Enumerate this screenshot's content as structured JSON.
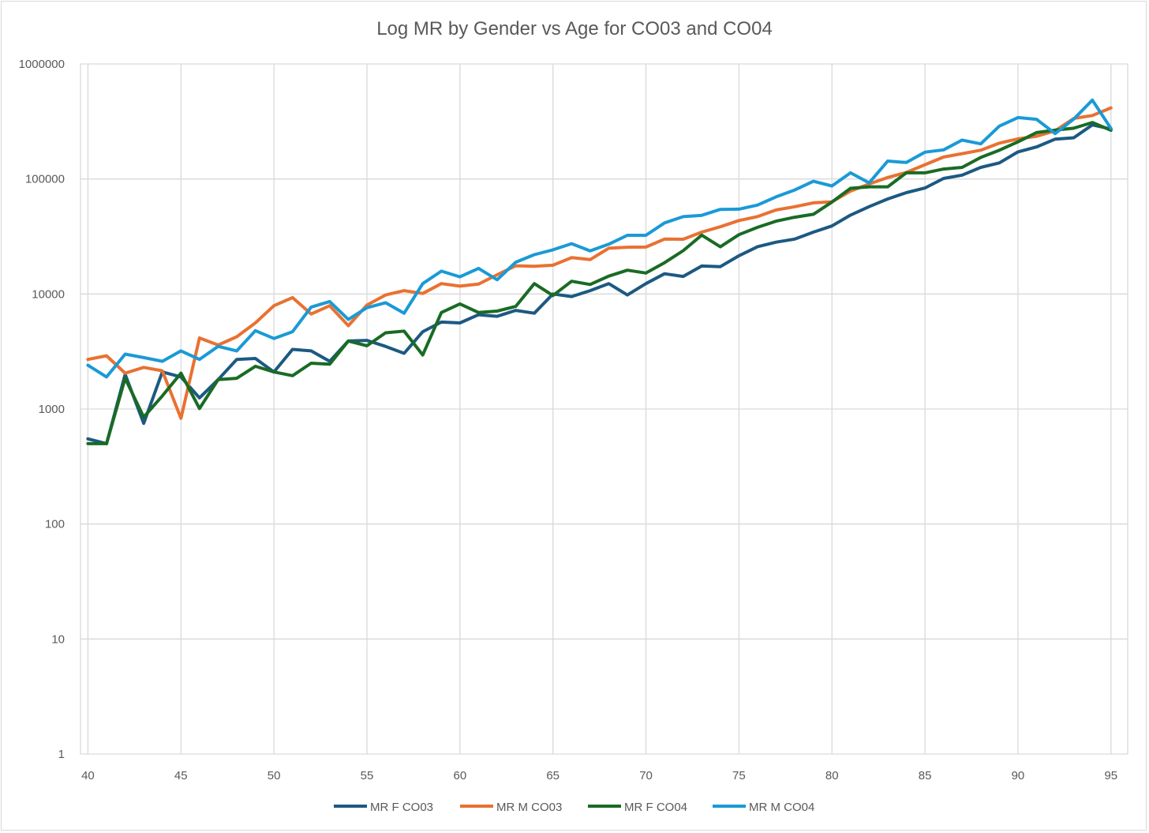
{
  "chart_data": {
    "type": "line",
    "title": "Log MR by Gender vs Age for CO03 and CO04",
    "xlabel": "",
    "ylabel": "",
    "yscale": "log",
    "xlim": [
      39.6,
      95.9
    ],
    "ylim": [
      1,
      1000000
    ],
    "grid": true,
    "legend_position": "bottom",
    "x_ticks": [
      "40",
      "45",
      "50",
      "55",
      "60",
      "65",
      "70",
      "75",
      "80",
      "85",
      "90",
      "95"
    ],
    "y_ticks": [
      "1",
      "10",
      "100",
      "1000",
      "10000",
      "100000",
      "1000000"
    ],
    "x": [
      40,
      41,
      42,
      43,
      44,
      45,
      46,
      47,
      48,
      49,
      50,
      51,
      52,
      53,
      54,
      55,
      56,
      57,
      58,
      59,
      60,
      61,
      62,
      63,
      64,
      65,
      66,
      67,
      68,
      69,
      70,
      71,
      72,
      73,
      74,
      75,
      76,
      77,
      78,
      79,
      80,
      81,
      82,
      83,
      84,
      85,
      86,
      87,
      88,
      89,
      90,
      91,
      92,
      93,
      94,
      95
    ],
    "series": [
      {
        "name": "MR F CO03",
        "color": "#1c5982",
        "values": [
          550,
          500,
          2000,
          750,
          2100,
          1900,
          1250,
          1800,
          2700,
          2750,
          2100,
          3300,
          3200,
          2600,
          3900,
          3950,
          3500,
          3050,
          4700,
          5700,
          5600,
          6600,
          6400,
          7200,
          6800,
          10000,
          9500,
          10700,
          12300,
          9800,
          12300,
          15000,
          14200,
          17500,
          17300,
          21500,
          25800,
          28200,
          30000,
          34500,
          39000,
          48500,
          57500,
          67000,
          76000,
          83500,
          101000,
          108000,
          126000,
          138000,
          172000,
          190000,
          222000,
          228000,
          295000,
          272000
        ]
      },
      {
        "name": "MR M CO03",
        "color": "#e97132",
        "values": [
          2700,
          2900,
          2050,
          2300,
          2150,
          830,
          4150,
          3600,
          4250,
          5600,
          7900,
          9300,
          6700,
          7900,
          5300,
          8000,
          9800,
          10700,
          10100,
          12300,
          11700,
          12200,
          14700,
          17600,
          17400,
          17800,
          20700,
          19900,
          25000,
          25500,
          25600,
          30000,
          29900,
          34500,
          38400,
          43500,
          47100,
          53800,
          57400,
          62000,
          63300,
          78500,
          90500,
          103000,
          114000,
          133000,
          155000,
          166000,
          178000,
          205000,
          223000,
          235000,
          262000,
          336000,
          356000,
          415000
        ]
      },
      {
        "name": "MR F CO04",
        "color": "#196b24",
        "values": [
          500,
          500,
          1850,
          850,
          1300,
          2050,
          1010,
          1800,
          1850,
          2350,
          2100,
          1950,
          2500,
          2450,
          3900,
          3550,
          4600,
          4750,
          2950,
          6900,
          8200,
          6900,
          7100,
          7800,
          12300,
          9700,
          12900,
          12100,
          14300,
          16100,
          15200,
          18700,
          23800,
          32500,
          25700,
          32800,
          38000,
          43000,
          46500,
          49300,
          63000,
          83000,
          85500,
          85500,
          113000,
          113000,
          122000,
          126000,
          154000,
          178000,
          210000,
          253000,
          266000,
          276000,
          310000,
          265000
        ]
      },
      {
        "name": "MR M CO04",
        "color": "#1a9ad6",
        "values": [
          2400,
          1900,
          3000,
          2800,
          2600,
          3200,
          2700,
          3500,
          3200,
          4800,
          4100,
          4700,
          7700,
          8600,
          6000,
          7600,
          8400,
          6800,
          12300,
          15800,
          14100,
          16700,
          13300,
          18900,
          22000,
          24200,
          27400,
          23700,
          27100,
          32400,
          32400,
          41500,
          47000,
          48300,
          54400,
          54600,
          59300,
          69900,
          80200,
          95400,
          87000,
          113000,
          92500,
          143000,
          139000,
          171000,
          179000,
          218000,
          202000,
          288000,
          342000,
          330000,
          248000,
          332000,
          485000,
          275000
        ]
      }
    ]
  }
}
